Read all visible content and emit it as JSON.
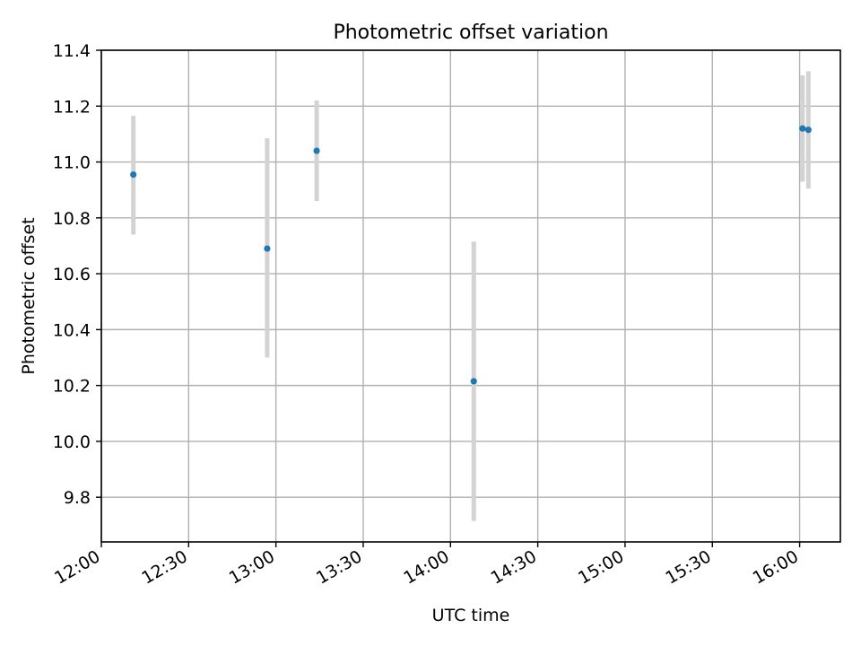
{
  "chart_data": {
    "type": "scatter",
    "title": "Photometric offset variation",
    "xlabel": "UTC time",
    "ylabel": "Photometric offset",
    "x_ticks": [
      "12:00",
      "12:30",
      "13:00",
      "13:30",
      "14:00",
      "14:30",
      "15:00",
      "15:30",
      "16:00"
    ],
    "y_ticks": [
      "9.8",
      "10.0",
      "10.2",
      "10.4",
      "10.6",
      "10.8",
      "11.0",
      "11.2",
      "11.4"
    ],
    "xlim": [
      "12:00",
      "16:14"
    ],
    "ylim": [
      9.64,
      11.4
    ],
    "grid": true,
    "points": [
      {
        "x": "12:11",
        "y": 10.955,
        "err_low": 10.74,
        "err_high": 11.165
      },
      {
        "x": "12:57",
        "y": 10.69,
        "err_low": 10.3,
        "err_high": 11.085
      },
      {
        "x": "13:14",
        "y": 11.04,
        "err_low": 10.86,
        "err_high": 11.22
      },
      {
        "x": "14:08",
        "y": 10.215,
        "err_low": 9.715,
        "err_high": 10.715
      },
      {
        "x": "16:01",
        "y": 11.12,
        "err_low": 10.93,
        "err_high": 11.31
      },
      {
        "x": "16:03",
        "y": 11.115,
        "err_low": 10.905,
        "err_high": 11.325
      }
    ],
    "colors": {
      "point": "#1f77b4",
      "errorbar": "#d3d3d3",
      "grid": "#b0b0b0"
    }
  }
}
